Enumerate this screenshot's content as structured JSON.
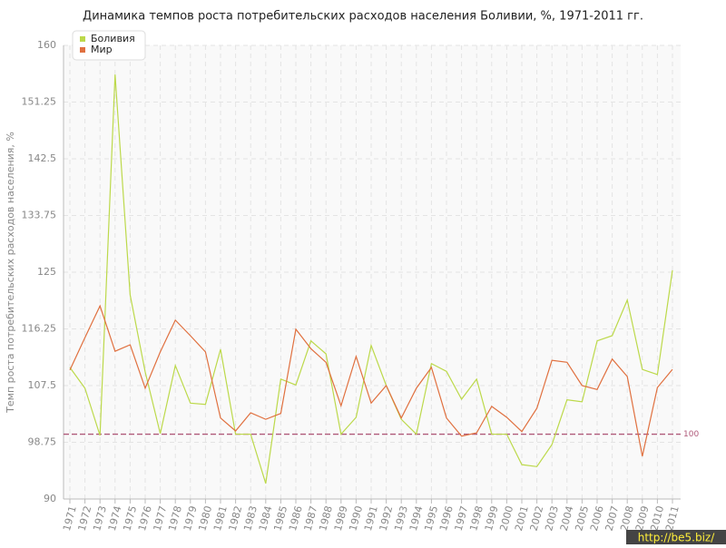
{
  "chart_data": {
    "type": "line",
    "title": "Динамика темпов роста потребительских расходов населения Боливии, %, 1971-2011 гг.",
    "y_label": "Темп роста потребительских расходов населения, %",
    "categories": [
      "1971",
      "1972",
      "1973",
      "1974",
      "1975",
      "1976",
      "1977",
      "1978",
      "1979",
      "1980",
      "1981",
      "1982",
      "1983",
      "1984",
      "1985",
      "1986",
      "1987",
      "1988",
      "1989",
      "1990",
      "1991",
      "1992",
      "1993",
      "1994",
      "1995",
      "1996",
      "1997",
      "1998",
      "1999",
      "2000",
      "2001",
      "2002",
      "2003",
      "2004",
      "2005",
      "2006",
      "2007",
      "2008",
      "2009",
      "2010",
      "2011"
    ],
    "series": [
      {
        "name": "Боливия",
        "color": "#bcd94a",
        "values": [
          110.3,
          107.1,
          99.8,
          155.5,
          121.5,
          109.6,
          100.1,
          110.6,
          104.8,
          104.6,
          113.1,
          100,
          100,
          92.4,
          108.5,
          107.6,
          114.4,
          112.4,
          100,
          102.6,
          113.7,
          107.5,
          102.3,
          100,
          110.9,
          109.7,
          105.4,
          108.5,
          100,
          100,
          95.3,
          95,
          98.4,
          105.3,
          105,
          114.4,
          115.2,
          120.7,
          110,
          109.2,
          125.3
        ]
      },
      {
        "name": "Мир",
        "color": "#e0703f",
        "values": [
          109.9,
          114.9,
          119.8,
          112.8,
          113.8,
          107.1,
          112.7,
          117.6,
          115.2,
          112.7,
          102.5,
          100.5,
          103.3,
          102.3,
          103.2,
          116.2,
          113.2,
          111.1,
          104.4,
          112,
          104.8,
          107.5,
          102.5,
          107.1,
          110.3,
          102.5,
          99.7,
          100.2,
          104.3,
          102.6,
          100.4,
          104,
          111.4,
          111.1,
          107.5,
          106.9,
          111.6,
          108.9,
          96.6,
          107.2,
          110
        ]
      }
    ],
    "ylim": [
      90,
      160
    ],
    "yticks": [
      90,
      98.75,
      107.5,
      116.25,
      125,
      133.75,
      142.5,
      151.25,
      160
    ],
    "grid": true,
    "legend": "top-left",
    "reference_line": {
      "value": 100,
      "color": "#b05a7a"
    },
    "watermark": "http://be5.biz/"
  }
}
